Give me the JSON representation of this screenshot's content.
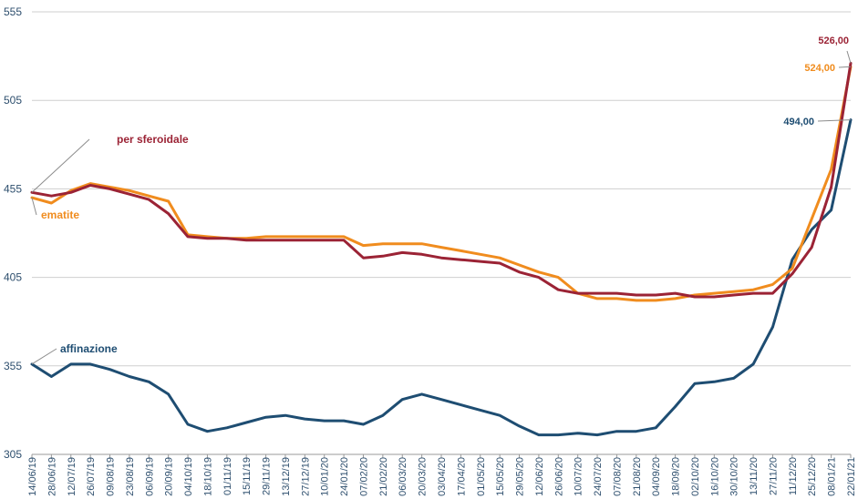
{
  "chart_data": {
    "type": "line",
    "ylim": [
      305,
      555
    ],
    "y_ticks": [
      "305",
      "355",
      "405",
      "455",
      "505",
      "555"
    ],
    "y_tick_values": [
      305,
      355,
      405,
      455,
      505,
      555
    ],
    "grid": "horizontal",
    "x": [
      "14/06/19",
      "28/06/19",
      "12/07/19",
      "26/07/19",
      "09/08/19",
      "23/08/19",
      "06/09/19",
      "20/09/19",
      "04/10/19",
      "18/10/19",
      "01/11/19",
      "15/11/19",
      "29/11/19",
      "13/12/19",
      "27/12/19",
      "10/01/20",
      "24/01/20",
      "07/02/20",
      "21/02/20",
      "06/03/20",
      "20/03/20",
      "03/04/20",
      "17/04/20",
      "01/05/20",
      "15/05/20",
      "29/05/20",
      "12/06/20",
      "26/06/20",
      "10/07/20",
      "24/07/20",
      "07/08/20",
      "21/08/20",
      "04/09/20",
      "18/09/20",
      "02/10/20",
      "16/10/20",
      "30/10/20",
      "13/11/20",
      "27/11/20",
      "11/12/20",
      "25/12/20",
      "08/01/21",
      "22/01/21"
    ],
    "series": [
      {
        "name": "per sferoidale",
        "color": "#9b2335",
        "values": [
          453,
          451,
          453,
          457,
          455,
          452,
          449,
          441,
          428,
          427,
          427,
          426,
          426,
          426,
          426,
          426,
          426,
          416,
          417,
          419,
          418,
          416,
          415,
          414,
          413,
          408,
          405,
          398,
          396,
          396,
          396,
          395,
          395,
          396,
          394,
          394,
          395,
          396,
          396,
          407,
          422,
          456,
          526
        ]
      },
      {
        "name": "ematite",
        "color": "#f08c1e",
        "values": [
          450,
          447,
          454,
          458,
          456,
          454,
          451,
          448,
          429,
          428,
          427,
          427,
          428,
          428,
          428,
          428,
          428,
          423,
          424,
          424,
          424,
          422,
          420,
          418,
          416,
          412,
          408,
          405,
          396,
          393,
          393,
          392,
          392,
          393,
          395,
          396,
          397,
          398,
          401,
          410,
          438,
          466,
          524
        ]
      },
      {
        "name": "affinazione",
        "color": "#1e4d72",
        "values": [
          356,
          349,
          356,
          356,
          353,
          349,
          346,
          339,
          322,
          318,
          320,
          323,
          326,
          327,
          325,
          324,
          324,
          322,
          327,
          336,
          339,
          336,
          333,
          330,
          327,
          321,
          316,
          316,
          317,
          316,
          318,
          318,
          320,
          332,
          345,
          346,
          348,
          356,
          377,
          415,
          432,
          443,
          494
        ]
      }
    ],
    "end_labels": [
      "526,00",
      "524,00",
      "494,00"
    ],
    "annotations": [
      "per sferoidale",
      "ematite",
      "affinazione"
    ]
  }
}
